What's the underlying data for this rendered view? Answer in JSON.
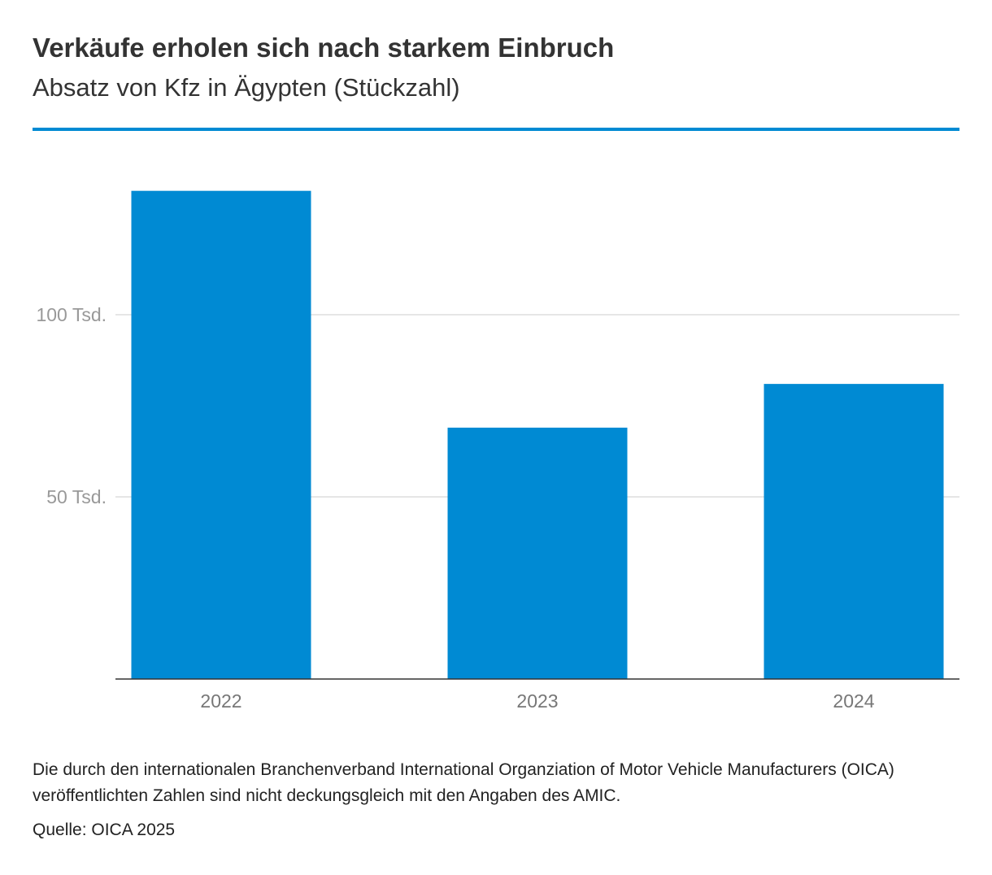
{
  "header": {
    "title": "Verkäufe erholen sich nach starkem Einbruch",
    "subtitle": "Absatz von Kfz in Ägypten (Stückzahl)"
  },
  "footer": {
    "note": "Die durch den internationalen Branchenverband International Organziation of Motor Vehicle Manufacturers (OICA) veröffentlichten Zahlen sind nicht deckungsgleich mit den Angaben des AMIC.",
    "source": "Quelle: OICA 2025"
  },
  "colors": {
    "accent": "#008ad3",
    "bar": "#008ad3",
    "grid": "#dddddd",
    "axis": "#333333"
  },
  "chart_data": {
    "type": "bar",
    "title": "Verkäufe erholen sich nach starkem Einbruch",
    "subtitle": "Absatz von Kfz in Ägypten (Stückzahl)",
    "categories": [
      "2022",
      "2023",
      "2024"
    ],
    "values": [
      134000,
      69000,
      81000
    ],
    "ylim": [
      0,
      150000
    ],
    "yticks": [
      {
        "value": 50000,
        "label": "50 Tsd."
      },
      {
        "value": 100000,
        "label": "100 Tsd."
      }
    ],
    "grid": true,
    "legend": "none"
  }
}
